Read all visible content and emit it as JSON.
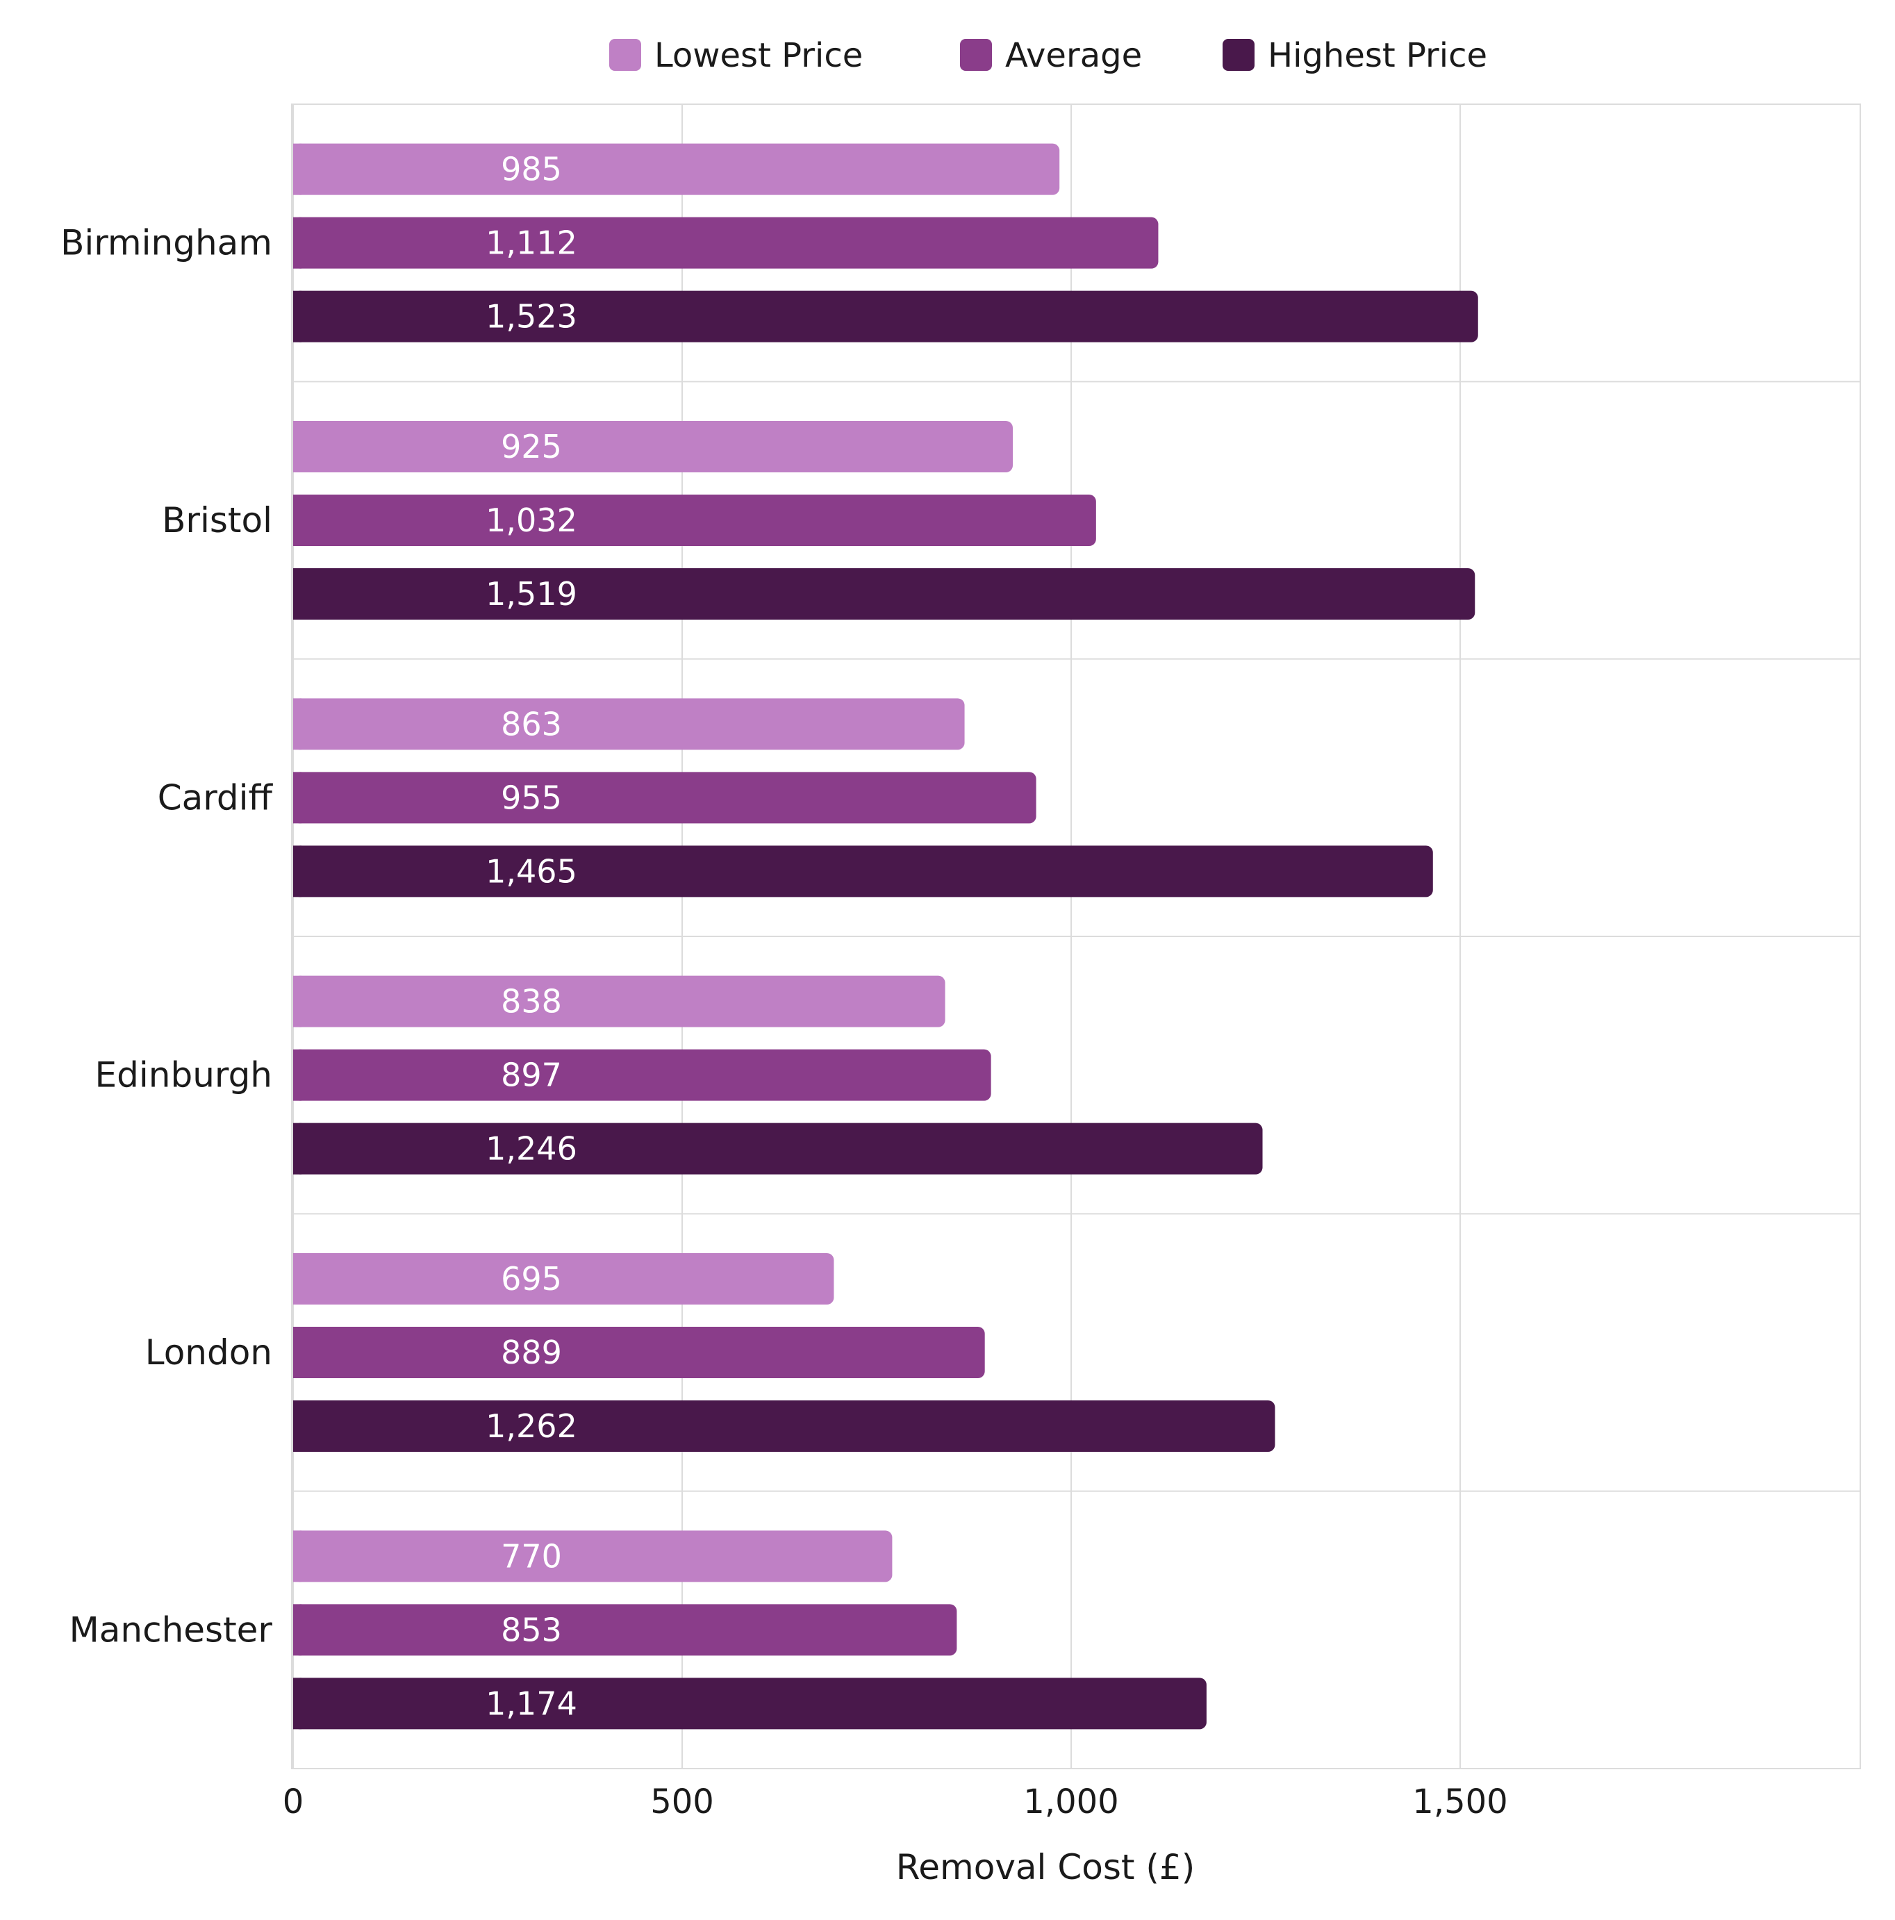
{
  "chart_data": {
    "type": "bar",
    "orientation": "horizontal",
    "categories": [
      "Birmingham",
      "Bristol",
      "Cardiff",
      "Edinburgh",
      "London",
      "Manchester"
    ],
    "series": [
      {
        "name": "Lowest Price",
        "color": "#bf80c5",
        "values": [
          985,
          925,
          863,
          838,
          695,
          770
        ],
        "labels": [
          "985",
          "925",
          "863",
          "838",
          "695",
          "770"
        ]
      },
      {
        "name": "Average",
        "color": "#8a3d8a",
        "values": [
          1112,
          1032,
          955,
          897,
          889,
          853
        ],
        "labels": [
          "1,112",
          "1,032",
          "955",
          "897",
          "889",
          "853"
        ]
      },
      {
        "name": "Highest Price",
        "color": "#49184b",
        "values": [
          1523,
          1519,
          1465,
          1246,
          1262,
          1174
        ],
        "labels": [
          "1,523",
          "1,519",
          "1,465",
          "1,246",
          "1,262",
          "1,174"
        ]
      }
    ],
    "xlabel": "Removal Cost (£)",
    "xlim": [
      0,
      2000
    ],
    "xticks": [
      {
        "value": 0,
        "label": "0"
      },
      {
        "value": 500,
        "label": "500"
      },
      {
        "value": 1000,
        "label": "1,000"
      },
      {
        "value": 1500,
        "label": "1,500"
      }
    ],
    "grid": true,
    "legend_position": "top-center",
    "data_labels": "inside-bar"
  }
}
